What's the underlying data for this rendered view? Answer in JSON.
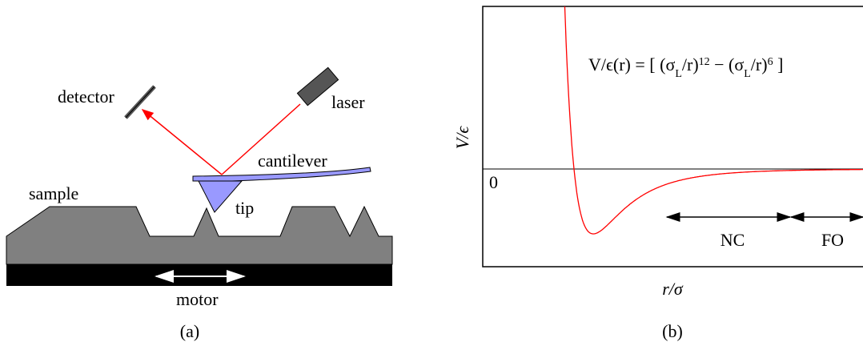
{
  "panel_a": {
    "labels": {
      "detector": "detector",
      "laser": "laser",
      "cantilever": "cantilever",
      "sample": "sample",
      "tip": "tip",
      "motor": "motor"
    },
    "caption": "(a)"
  },
  "panel_b": {
    "formula": [
      "V/ϵ(r) = [ (σ",
      "L",
      "/r)",
      "12",
      " − (σ",
      "L",
      "/r)",
      "6",
      " ]"
    ],
    "zero_label": "0",
    "y_label": "V/ϵ",
    "x_label": "r/σ",
    "regions": [
      "NC",
      "FO"
    ],
    "caption": "(b)"
  }
}
